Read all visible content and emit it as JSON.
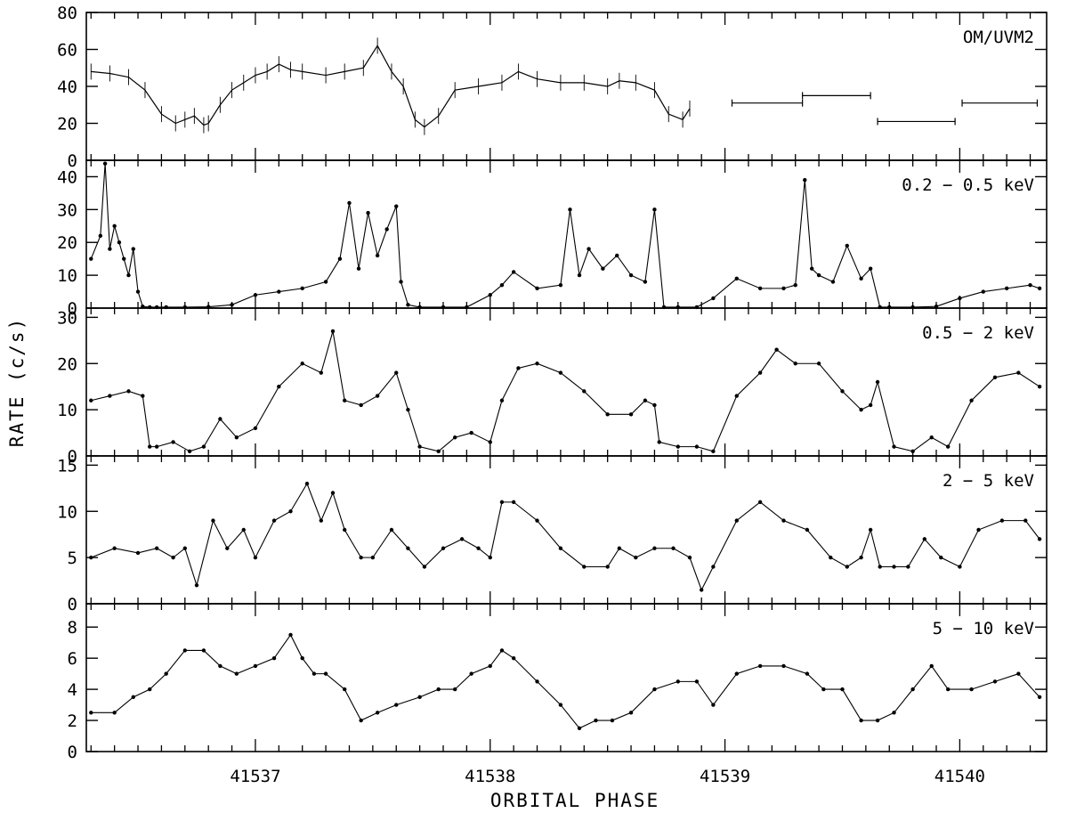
{
  "chart_data": {
    "type": "line",
    "xlabel": "ORBITAL PHASE",
    "ylabel": "RATE (c/s)",
    "xlim": [
      41536.28,
      41540.37
    ],
    "x_ticks": [
      41537,
      41538,
      41539,
      41540
    ],
    "x_tick_labels": [
      "41537",
      "41538",
      "41539",
      "41540"
    ],
    "panels": [
      {
        "label": "OM/UVM2",
        "style": "error-bars",
        "ylim": [
          0,
          80
        ],
        "y_ticks": [
          0,
          20,
          40,
          60,
          80
        ],
        "y_tick_labels": [
          "0",
          "20",
          "40",
          "60",
          "80"
        ],
        "x": [
          41536.3,
          41536.38,
          41536.46,
          41536.53,
          41536.6,
          41536.66,
          41536.7,
          41536.74,
          41536.78,
          41536.8,
          41536.85,
          41536.9,
          41536.95,
          41537.0,
          41537.05,
          41537.1,
          41537.15,
          41537.2,
          41537.3,
          41537.38,
          41537.46,
          41537.52,
          41537.58,
          41537.63,
          41537.68,
          41537.72,
          41537.78,
          41537.85,
          41537.95,
          41538.05,
          41538.12,
          41538.2,
          41538.3,
          41538.4,
          41538.5,
          41538.55,
          41538.62,
          41538.7,
          41538.76,
          41538.82,
          41538.85
        ],
        "values": [
          48,
          47,
          45,
          38,
          25,
          20,
          22,
          24,
          19,
          20,
          30,
          38,
          42,
          46,
          48,
          52,
          49,
          48,
          46,
          48,
          50,
          62,
          48,
          40,
          22,
          18,
          24,
          38,
          40,
          42,
          48,
          44,
          42,
          42,
          40,
          43,
          42,
          38,
          25,
          22,
          28
        ],
        "bins": [
          {
            "x0": 41539.03,
            "x1": 41539.33,
            "y": 31
          },
          {
            "x0": 41539.33,
            "x1": 41539.62,
            "y": 35
          },
          {
            "x0": 41539.65,
            "x1": 41539.98,
            "y": 21
          },
          {
            "x0": 41540.01,
            "x1": 41540.33,
            "y": 31
          }
        ]
      },
      {
        "label": "0.2 − 0.5 keV",
        "style": "points-line",
        "ylim": [
          0,
          45
        ],
        "y_ticks": [
          0,
          10,
          20,
          30,
          40
        ],
        "y_tick_labels": [
          "0",
          "10",
          "20",
          "30",
          "40"
        ],
        "x": [
          41536.3,
          41536.34,
          41536.36,
          41536.38,
          41536.4,
          41536.42,
          41536.44,
          41536.46,
          41536.48,
          41536.5,
          41536.52,
          41536.55,
          41536.58,
          41536.62,
          41536.7,
          41536.8,
          41536.9,
          41537.0,
          41537.1,
          41537.2,
          41537.3,
          41537.36,
          41537.4,
          41537.44,
          41537.48,
          41537.52,
          41537.56,
          41537.6,
          41537.62,
          41537.65,
          41537.7,
          41537.8,
          41537.9,
          41538.0,
          41538.05,
          41538.1,
          41538.2,
          41538.3,
          41538.34,
          41538.38,
          41538.42,
          41538.48,
          41538.54,
          41538.6,
          41538.66,
          41538.7,
          41538.74,
          41538.8,
          41538.88,
          41538.95,
          41539.05,
          41539.15,
          41539.25,
          41539.3,
          41539.34,
          41539.37,
          41539.4,
          41539.46,
          41539.52,
          41539.58,
          41539.62,
          41539.66,
          41539.7,
          41539.8,
          41539.9,
          41540.0,
          41540.1,
          41540.2,
          41540.3,
          41540.34
        ],
        "values": [
          15,
          22,
          44,
          18,
          25,
          20,
          15,
          10,
          18,
          5,
          0.5,
          0.3,
          0.3,
          0.3,
          0.3,
          0.4,
          1,
          4,
          5,
          6,
          8,
          15,
          32,
          12,
          29,
          16,
          24,
          31,
          8,
          1,
          0.3,
          0.3,
          0.3,
          4,
          7,
          11,
          6,
          7,
          30,
          10,
          18,
          12,
          16,
          10,
          8,
          30,
          0.3,
          0.3,
          0.3,
          3,
          9,
          6,
          6,
          7,
          39,
          12,
          10,
          8,
          19,
          9,
          12,
          0.3,
          0.3,
          0.3,
          0.5,
          3,
          5,
          6,
          7,
          6
        ]
      },
      {
        "label": "0.5 − 2 keV",
        "style": "points-line",
        "ylim": [
          0,
          32
        ],
        "y_ticks": [
          0,
          10,
          20,
          30
        ],
        "y_tick_labels": [
          "0",
          "10",
          "20",
          "30"
        ],
        "x": [
          41536.3,
          41536.38,
          41536.46,
          41536.52,
          41536.55,
          41536.58,
          41536.65,
          41536.72,
          41536.78,
          41536.85,
          41536.92,
          41537.0,
          41537.1,
          41537.2,
          41537.28,
          41537.33,
          41537.38,
          41537.45,
          41537.52,
          41537.6,
          41537.65,
          41537.7,
          41537.78,
          41537.85,
          41537.92,
          41538.0,
          41538.05,
          41538.12,
          41538.2,
          41538.3,
          41538.4,
          41538.5,
          41538.6,
          41538.66,
          41538.7,
          41538.72,
          41538.8,
          41538.88,
          41538.95,
          41539.05,
          41539.15,
          41539.22,
          41539.3,
          41539.4,
          41539.5,
          41539.58,
          41539.62,
          41539.65,
          41539.72,
          41539.8,
          41539.88,
          41539.95,
          41540.05,
          41540.15,
          41540.25,
          41540.34
        ],
        "values": [
          12,
          13,
          14,
          13,
          2,
          2,
          3,
          1,
          2,
          8,
          4,
          6,
          15,
          20,
          18,
          27,
          12,
          11,
          13,
          18,
          10,
          2,
          1,
          4,
          5,
          3,
          12,
          19,
          20,
          18,
          14,
          9,
          9,
          12,
          11,
          3,
          2,
          2,
          1,
          13,
          18,
          23,
          20,
          20,
          14,
          10,
          11,
          16,
          2,
          1,
          4,
          2,
          12,
          17,
          18,
          15
        ]
      },
      {
        "label": "2 − 5 keV",
        "style": "points-line",
        "ylim": [
          0,
          16
        ],
        "y_ticks": [
          0,
          5,
          10,
          15
        ],
        "y_tick_labels": [
          "0",
          "5",
          "10",
          "15"
        ],
        "x": [
          41536.3,
          41536.4,
          41536.5,
          41536.58,
          41536.65,
          41536.7,
          41536.75,
          41536.82,
          41536.88,
          41536.95,
          41537.0,
          41537.08,
          41537.15,
          41537.22,
          41537.28,
          41537.33,
          41537.38,
          41537.45,
          41537.5,
          41537.58,
          41537.65,
          41537.72,
          41537.8,
          41537.88,
          41537.95,
          41538.0,
          41538.05,
          41538.1,
          41538.2,
          41538.3,
          41538.4,
          41538.5,
          41538.55,
          41538.62,
          41538.7,
          41538.78,
          41538.85,
          41538.9,
          41538.95,
          41539.05,
          41539.15,
          41539.25,
          41539.35,
          41539.45,
          41539.52,
          41539.58,
          41539.62,
          41539.66,
          41539.72,
          41539.78,
          41539.85,
          41539.92,
          41540.0,
          41540.08,
          41540.18,
          41540.28,
          41540.34
        ],
        "values": [
          5,
          6,
          5.5,
          6,
          5,
          6,
          2,
          9,
          6,
          8,
          5,
          9,
          10,
          13,
          9,
          12,
          8,
          5,
          5,
          8,
          6,
          4,
          6,
          7,
          6,
          5,
          11,
          11,
          9,
          6,
          4,
          4,
          6,
          5,
          6,
          6,
          5,
          1.5,
          4,
          9,
          11,
          9,
          8,
          5,
          4,
          5,
          8,
          4,
          4,
          4,
          7,
          5,
          4,
          8,
          9,
          9,
          7
        ]
      },
      {
        "label": "5 − 10 keV",
        "style": "points-line",
        "ylim": [
          0,
          9.5
        ],
        "y_ticks": [
          0,
          2,
          4,
          6,
          8
        ],
        "y_tick_labels": [
          "0",
          "2",
          "4",
          "6",
          "8"
        ],
        "x": [
          41536.3,
          41536.4,
          41536.48,
          41536.55,
          41536.62,
          41536.7,
          41536.78,
          41536.85,
          41536.92,
          41537.0,
          41537.08,
          41537.15,
          41537.2,
          41537.25,
          41537.3,
          41537.38,
          41537.45,
          41537.52,
          41537.6,
          41537.7,
          41537.78,
          41537.85,
          41537.92,
          41538.0,
          41538.05,
          41538.1,
          41538.2,
          41538.3,
          41538.38,
          41538.45,
          41538.52,
          41538.6,
          41538.7,
          41538.8,
          41538.88,
          41538.95,
          41539.05,
          41539.15,
          41539.25,
          41539.35,
          41539.42,
          41539.5,
          41539.58,
          41539.65,
          41539.72,
          41539.8,
          41539.88,
          41539.95,
          41540.05,
          41540.15,
          41540.25,
          41540.34
        ],
        "values": [
          2.5,
          2.5,
          3.5,
          4,
          5,
          6.5,
          6.5,
          5.5,
          5,
          5.5,
          6,
          7.5,
          6,
          5,
          5,
          4,
          2,
          2.5,
          3,
          3.5,
          4,
          4,
          5,
          5.5,
          6.5,
          6,
          4.5,
          3,
          1.5,
          2,
          2,
          2.5,
          4,
          4.5,
          4.5,
          3,
          5,
          5.5,
          5.5,
          5,
          4,
          4,
          2,
          2,
          2.5,
          4,
          5.5,
          4,
          4,
          4.5,
          5,
          3.5
        ]
      }
    ]
  }
}
